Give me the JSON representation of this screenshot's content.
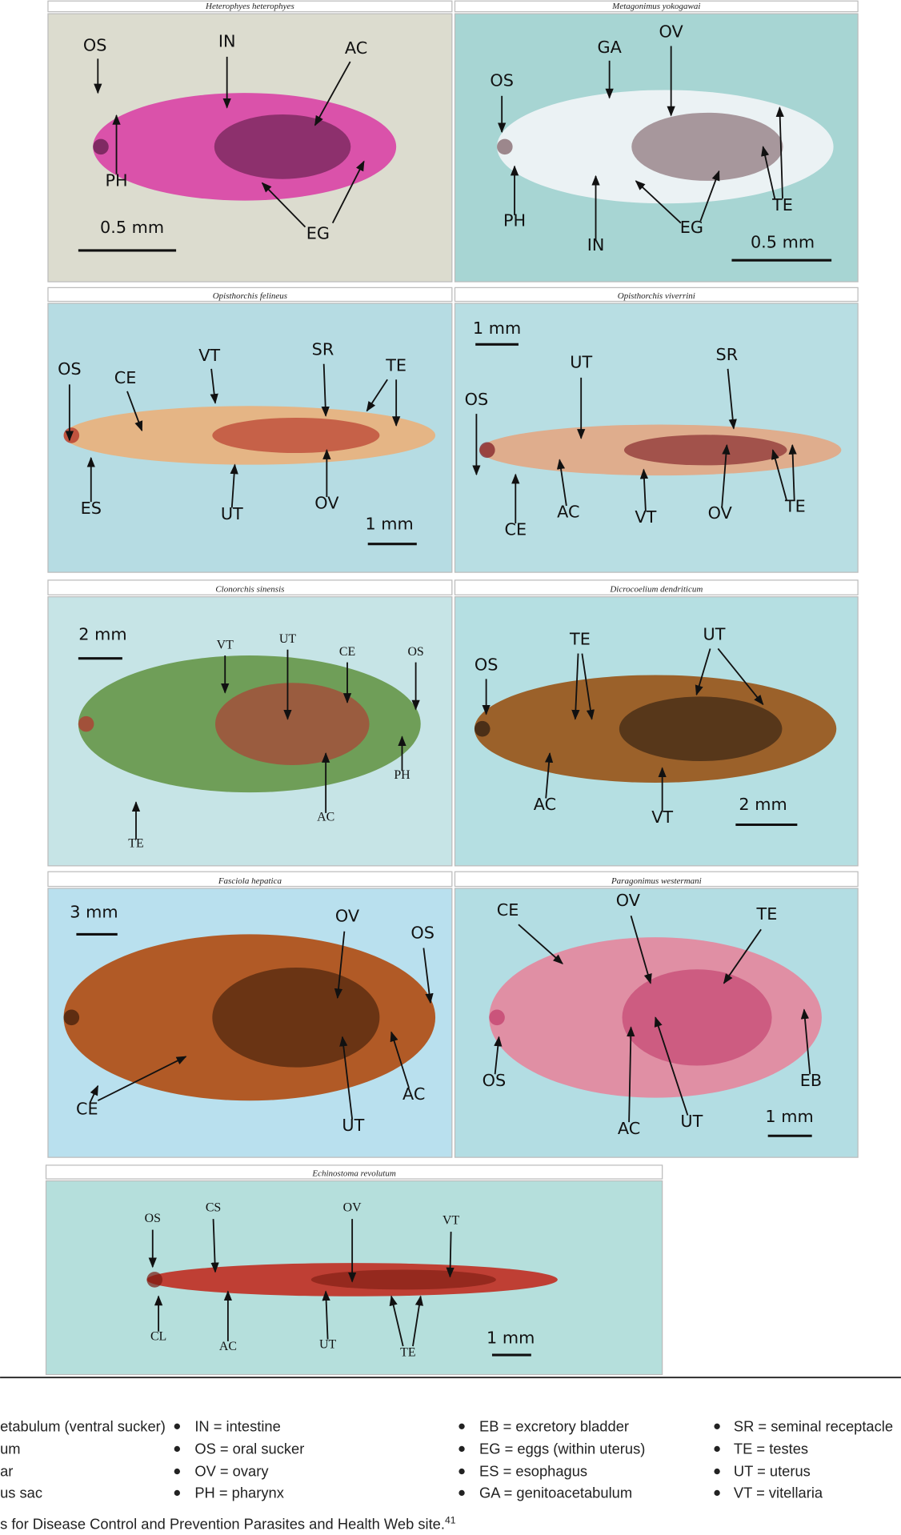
{
  "figure": {
    "panels": [
      {
        "title": "Heterophyes heterophyes",
        "labels": [
          "OS",
          "PH",
          "IN",
          "AC",
          "EG"
        ],
        "scale": "0.5 mm"
      },
      {
        "title": "Metagonimus yokogawai",
        "labels": [
          "OS",
          "GA",
          "OV",
          "PH",
          "IN",
          "EG",
          "TE"
        ],
        "scale": "0.5 mm"
      },
      {
        "title": "Opisthorchis felineus",
        "labels": [
          "OS",
          "CE",
          "VT",
          "SR",
          "TE",
          "ES",
          "UT",
          "OV"
        ],
        "scale": "1 mm"
      },
      {
        "title": "Opisthorchis viverrini",
        "labels": [
          "UT",
          "SR",
          "OS",
          "CE",
          "AC",
          "VT",
          "OV",
          "TE"
        ],
        "scale": "1 mm"
      },
      {
        "title": "Clonorchis sinensis",
        "labels": [
          "VT",
          "UT",
          "CE",
          "OS",
          "PH",
          "AC",
          "TE"
        ],
        "scale": "2 mm"
      },
      {
        "title": "Dicrocoelium dendriticum",
        "labels": [
          "OS",
          "TE",
          "UT",
          "AC",
          "VT"
        ],
        "scale": "2 mm"
      },
      {
        "title": "Fasciola hepatica",
        "labels": [
          "OV",
          "OS",
          "CE",
          "AC",
          "UT"
        ],
        "scale": "3 mm"
      },
      {
        "title": "Paragonimus westermani",
        "labels": [
          "CE",
          "OV",
          "TE",
          "OS",
          "AC",
          "UT",
          "EB"
        ],
        "scale": "1 mm"
      },
      {
        "title": "Echinostoma revolutum",
        "labels": [
          "OS",
          "CS",
          "OV",
          "VT",
          "CL",
          "AC",
          "UT",
          "TE"
        ],
        "scale": "1 mm"
      }
    ]
  },
  "legend": {
    "columns": [
      [
        "etabulum (ventral sucker)",
        "um",
        "ar",
        "us sac"
      ],
      [
        "IN = intestine",
        "OS = oral sucker",
        "OV = ovary",
        "PH = pharynx"
      ],
      [
        "EB = excretory bladder",
        "EG = eggs (within uterus)",
        "ES = esophagus",
        "GA = genitoacetabulum"
      ],
      [
        "SR = seminal receptacle",
        "TE = testes",
        "UT = uterus",
        "VT = vitellaria"
      ]
    ]
  },
  "source": {
    "text": "s for Disease Control and Prevention Parasites and Health Web site.",
    "ref": "41"
  }
}
